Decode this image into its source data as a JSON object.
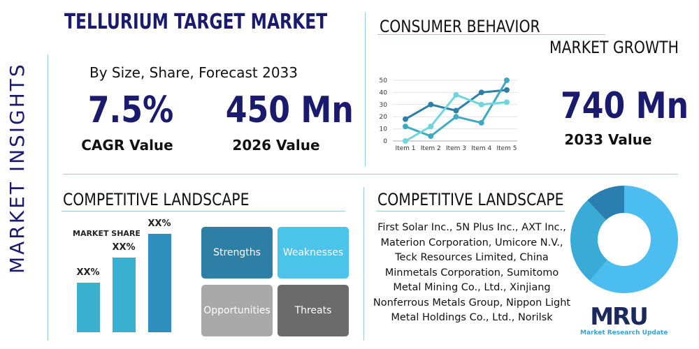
{
  "header": {
    "title": "TELLURIUM TARGET MARKET",
    "side_label": "MARKET INSIGHTS",
    "subtitle": "By Size, Share, Forecast 2033"
  },
  "stats": {
    "cagr": "7.5%",
    "cagr_label": "CAGR Value",
    "value_2026": "450 Mn",
    "value_2026_label": "2026 Value",
    "value_2033": "740 Mn",
    "value_2033_label": "2033 Value"
  },
  "consumer": {
    "title": "CONSUMER BEHAVIOR",
    "subtitle": "MARKET GROWTH"
  },
  "chart_data": {
    "type": "line",
    "categories": [
      "Item 1",
      "Item 2",
      "Item 3",
      "Item 4",
      "Item 5"
    ],
    "yticks": [
      0,
      10,
      20,
      30,
      40,
      50
    ],
    "ylim": [
      0,
      50
    ],
    "grid": true,
    "series": [
      {
        "values": [
          18,
          30,
          25,
          40,
          42
        ],
        "color": "#2d7fa6"
      },
      {
        "values": [
          12,
          4,
          20,
          15,
          50
        ],
        "color": "#3fa9c4"
      },
      {
        "values": [
          0,
          12,
          38,
          30,
          32
        ],
        "color": "#6fd5de"
      }
    ]
  },
  "competitive_left": {
    "title": "COMPETITIVE LANDSCAPE",
    "market_share": "MARKET SHARE",
    "bars": [
      {
        "label": "XX%",
        "level": 0.42
      },
      {
        "label": "XX%",
        "level": 0.63
      },
      {
        "label": "XX%",
        "level": 0.83
      }
    ],
    "swot": [
      {
        "label": "Strengths",
        "color": "#2d7fa6"
      },
      {
        "label": "Weaknesses",
        "color": "#4cc3ea"
      },
      {
        "label": "Opportunities",
        "color": "#a9a9a9"
      },
      {
        "label": "Threats",
        "color": "#6b6b6b"
      }
    ]
  },
  "competitive_right": {
    "title": "COMPETITIVE LANDSCAPE",
    "companies": "First Solar Inc., 5N Plus Inc., AXT Inc., Materion Corporation, Umicore N.V., Teck Resources Limited, China Minmetals Corporation, Sumitomo Metal Mining Co., Ltd., Xinjiang Nonferrous Metals Group, Nippon Light Metal Holdings Co., Ltd., Norilsk"
  },
  "donut": {
    "slices": [
      {
        "value": 61,
        "color": "#4bbdf0"
      },
      {
        "value": 27,
        "color": "#3aaad6"
      },
      {
        "value": 12,
        "color": "#2a7fb0"
      }
    ]
  },
  "logo": {
    "mark": "MRU",
    "name": "Market Research Update"
  }
}
